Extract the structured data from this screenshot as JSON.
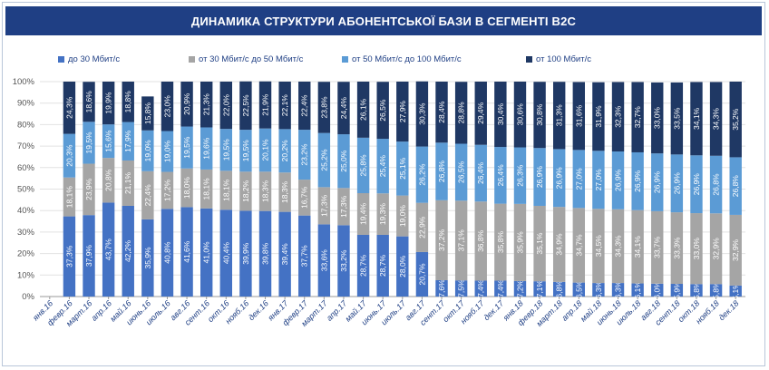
{
  "title": "ДИНАМИКА СТРУКТУРИ АБОНЕНТСЬКОЇ БАЗИ В СЕГМЕНТІ B2C",
  "colors": {
    "header": "#1f3f84",
    "s1": "#4472c4",
    "s2": "#a5a5a5",
    "s3": "#5b9bd5",
    "s4": "#1f3864"
  },
  "chart_data": {
    "type": "bar",
    "stacked": true,
    "orientation": "vertical",
    "title": "ДИНАМИКА СТРУКТУРИ АБОНЕНТСЬКОЇ БАЗИ В СЕГМЕНТІ B2C",
    "legend_position": "top",
    "ylim": [
      0,
      100
    ],
    "yticks": [
      "0%",
      "10%",
      "20%",
      "30%",
      "40%",
      "50%",
      "60%",
      "70%",
      "80%",
      "90%",
      "100%"
    ],
    "categories": [
      "янв.16",
      "февр.16",
      "март.16",
      "апр.16",
      "май.16",
      "июнь.16",
      "июль.16",
      "авг.16",
      "сент.16",
      "окт.16",
      "нояб.16",
      "дек.16",
      "янв.17",
      "февр.17",
      "март.17",
      "апр.17",
      "май.17",
      "июнь.17",
      "июль.17",
      "авг.17",
      "сент.17",
      "окт.17",
      "нояб.17",
      "дек.17",
      "янв.18",
      "февр.18",
      "март.18",
      "апр.18",
      "май.18",
      "июнь.18",
      "июль.18",
      "авг.18",
      "сент.18",
      "окт.18",
      "нояб.18",
      "дек.18"
    ],
    "series": [
      {
        "name": "до 30 Мбит/с",
        "color": "#4472c4",
        "values": [
          null,
          37.3,
          37.9,
          43.7,
          42.2,
          35.9,
          40.8,
          41.6,
          41.0,
          40.4,
          39.9,
          39.8,
          39.4,
          37.7,
          33.6,
          33.2,
          28.7,
          28.7,
          28.0,
          20.7,
          7.6,
          7.5,
          7.4,
          7.4,
          7.2,
          7.1,
          6.8,
          6.5,
          6.3,
          6.3,
          6.1,
          6.0,
          5.9,
          5.8,
          5.8,
          5.1
        ],
        "labels": [
          "",
          "37,3%",
          "37,9%",
          "43,7%",
          "42,2%",
          "35,9%",
          "40,8%",
          "41,6%",
          "41,0%",
          "40,4%",
          "39,9%",
          "39,8%",
          "39,4%",
          "37,7%",
          "33,6%",
          "33,2%",
          "28,7%",
          "28,7%",
          "28,0%",
          "20,7%",
          "7,6%",
          "7,5%",
          "7,4%",
          "7,4%",
          "7,2%",
          "7,1%",
          "6,8%",
          "6,5%",
          "6,3%",
          "6,3%",
          "6,1%",
          "6,0%",
          "5,9%",
          "5,8%",
          "5,8%",
          "5,1%"
        ]
      },
      {
        "name": "от 30 Мбит/с до 50 Мбит/с",
        "color": "#a5a5a5",
        "values": [
          null,
          18.1,
          23.9,
          20.8,
          21.1,
          22.4,
          17.2,
          18.0,
          18.1,
          18.1,
          18.2,
          18.3,
          18.3,
          16.7,
          17.3,
          17.3,
          19.4,
          19.3,
          19.0,
          22.9,
          37.2,
          37.1,
          36.8,
          35.8,
          35.9,
          35.1,
          34.9,
          34.7,
          34.5,
          34.3,
          34.1,
          33.7,
          33.3,
          33.0,
          32.9,
          32.9
        ],
        "labels": [
          "",
          "18,1%",
          "23,9%",
          "20,8%",
          "21,1%",
          "22,4%",
          "17,2%",
          "18,0%",
          "18,1%",
          "18,1%",
          "18,2%",
          "18,3%",
          "18,3%",
          "16,7%",
          "17,3%",
          "17,3%",
          "19,4%",
          "19,3%",
          "19,0%",
          "22,9%",
          "37,2%",
          "37,1%",
          "36,8%",
          "35,8%",
          "35,9%",
          "35,1%",
          "34,9%",
          "34,7%",
          "34,5%",
          "34,3%",
          "34,1%",
          "33,7%",
          "33,3%",
          "33,0%",
          "32,9%",
          "32,9%"
        ]
      },
      {
        "name": "от 50 Мбит/с до 100 Мбит/с",
        "color": "#5b9bd5",
        "values": [
          null,
          20.3,
          19.5,
          15.6,
          17.9,
          19.0,
          19.0,
          19.5,
          19.6,
          19.5,
          19.5,
          20.1,
          20.2,
          23.2,
          25.2,
          25.0,
          25.8,
          25.4,
          25.1,
          26.2,
          26.8,
          26.5,
          26.4,
          26.4,
          26.3,
          26.9,
          26.9,
          27.0,
          27.0,
          26.9,
          26.9,
          26.9,
          26.9,
          26.9,
          26.8,
          26.8
        ],
        "labels": [
          "",
          "20,3%",
          "19,5%",
          "15,6%",
          "17,9%",
          "19,0%",
          "19,0%",
          "19,5%",
          "19,6%",
          "19,5%",
          "19,5%",
          "20,1%",
          "20,2%",
          "23,2%",
          "25,2%",
          "25,0%",
          "25,8%",
          "25,4%",
          "25,1%",
          "26,2%",
          "26,8%",
          "26,5%",
          "26,4%",
          "26,4%",
          "26,3%",
          "26,9%",
          "26,9%",
          "27,0%",
          "27,0%",
          "26,9%",
          "26,9%",
          "26,9%",
          "26,9%",
          "26,9%",
          "26,8%",
          "26,8%"
        ]
      },
      {
        "name": "от 100 Мбит/с",
        "color": "#1f3864",
        "values": [
          null,
          24.3,
          18.6,
          19.9,
          18.8,
          15.8,
          23.0,
          20.9,
          21.3,
          22.0,
          22.5,
          21.9,
          22.1,
          22.4,
          23.8,
          24.4,
          26.1,
          26.5,
          27.9,
          30.3,
          28.4,
          28.8,
          29.4,
          30.4,
          30.6,
          30.8,
          31.3,
          31.6,
          31.9,
          32.3,
          32.7,
          33.0,
          33.5,
          34.1,
          34.3,
          35.2
        ],
        "labels": [
          "",
          "24,3%",
          "18,6%",
          "19,9%",
          "18,8%",
          "15,8%",
          "23,0%",
          "20,9%",
          "21,3%",
          "22,0%",
          "22,5%",
          "21,9%",
          "22,1%",
          "22,4%",
          "23,8%",
          "24,4%",
          "26,1%",
          "26,5%",
          "27,9%",
          "30,3%",
          "28,4%",
          "28,8%",
          "29,4%",
          "30,4%",
          "30,6%",
          "30,8%",
          "31,3%",
          "31,6%",
          "31,9%",
          "32,3%",
          "32,7%",
          "33,0%",
          "33,5%",
          "34,1%",
          "34,3%",
          "35,2%"
        ]
      }
    ]
  }
}
